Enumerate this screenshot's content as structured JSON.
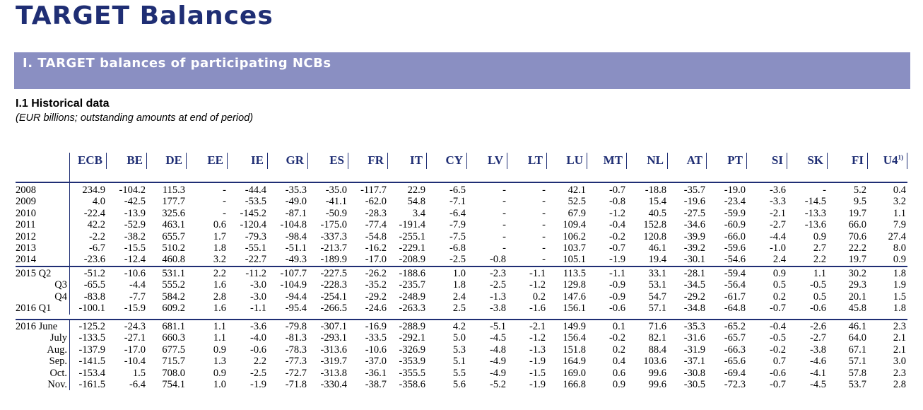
{
  "title": "TARGET Balances",
  "section": "I. TARGET balances of participating NCBs",
  "subsection": {
    "title": "I.1 Historical data",
    "note": "(EUR billions; outstanding amounts at end of period)"
  },
  "columns": [
    "ECB",
    "BE",
    "DE",
    "EE",
    "IE",
    "GR",
    "ES",
    "FR",
    "IT",
    "CY",
    "LV",
    "LT",
    "LU",
    "MT",
    "NL",
    "AT",
    "PT",
    "SI",
    "SK",
    "FI",
    "U4"
  ],
  "last_column_footnote": "1)",
  "groups": [
    {
      "rows": [
        {
          "label": "2008",
          "values": [
            "234.9",
            "-104.2",
            "115.3",
            "-",
            "-44.4",
            "-35.3",
            "-35.0",
            "-117.7",
            "22.9",
            "-6.5",
            "-",
            "-",
            "42.1",
            "-0.7",
            "-18.8",
            "-35.7",
            "-19.0",
            "-3.6",
            "-",
            "5.2",
            "0.4"
          ]
        },
        {
          "label": "2009",
          "values": [
            "4.0",
            "-42.5",
            "177.7",
            "-",
            "-53.5",
            "-49.0",
            "-41.1",
            "-62.0",
            "54.8",
            "-7.1",
            "-",
            "-",
            "52.5",
            "-0.8",
            "15.4",
            "-19.6",
            "-23.4",
            "-3.3",
            "-14.5",
            "9.5",
            "3.2"
          ]
        },
        {
          "label": "2010",
          "values": [
            "-22.4",
            "-13.9",
            "325.6",
            "-",
            "-145.2",
            "-87.1",
            "-50.9",
            "-28.3",
            "3.4",
            "-6.4",
            "-",
            "-",
            "67.9",
            "-1.2",
            "40.5",
            "-27.5",
            "-59.9",
            "-2.1",
            "-13.3",
            "19.7",
            "1.1"
          ]
        },
        {
          "label": "2011",
          "values": [
            "42.2",
            "-52.9",
            "463.1",
            "0.6",
            "-120.4",
            "-104.8",
            "-175.0",
            "-77.4",
            "-191.4",
            "-7.9",
            "-",
            "-",
            "109.4",
            "-0.4",
            "152.8",
            "-34.6",
            "-60.9",
            "-2.7",
            "-13.6",
            "66.0",
            "7.9"
          ]
        },
        {
          "label": "2012",
          "values": [
            "-2.2",
            "-38.2",
            "655.7",
            "1.7",
            "-79.3",
            "-98.4",
            "-337.3",
            "-54.8",
            "-255.1",
            "-7.5",
            "-",
            "-",
            "106.2",
            "-0.2",
            "120.8",
            "-39.9",
            "-66.0",
            "-4.4",
            "0.9",
            "70.6",
            "27.4"
          ]
        },
        {
          "label": "2013",
          "values": [
            "-6.7",
            "-15.5",
            "510.2",
            "1.8",
            "-55.1",
            "-51.1",
            "-213.7",
            "-16.2",
            "-229.1",
            "-6.8",
            "-",
            "-",
            "103.7",
            "-0.7",
            "46.1",
            "-39.2",
            "-59.6",
            "-1.0",
            "2.7",
            "22.2",
            "8.0"
          ]
        },
        {
          "label": "2014",
          "values": [
            "-23.6",
            "-12.4",
            "460.8",
            "3.2",
            "-22.7",
            "-49.3",
            "-189.9",
            "-17.0",
            "-208.9",
            "-2.5",
            "-0.8",
            "-",
            "105.1",
            "-1.9",
            "19.4",
            "-30.1",
            "-54.6",
            "2.4",
            "2.2",
            "19.7",
            "0.9"
          ]
        }
      ]
    },
    {
      "rows": [
        {
          "label": "2015 Q2",
          "values": [
            "-51.2",
            "-10.6",
            "531.1",
            "2.2",
            "-11.2",
            "-107.7",
            "-227.5",
            "-26.2",
            "-188.6",
            "1.0",
            "-2.3",
            "-1.1",
            "113.5",
            "-1.1",
            "33.1",
            "-28.1",
            "-59.4",
            "0.9",
            "1.1",
            "30.2",
            "1.8"
          ]
        },
        {
          "label": "Q3",
          "values": [
            "-65.5",
            "-4.4",
            "555.2",
            "1.6",
            "-3.0",
            "-104.9",
            "-228.3",
            "-35.2",
            "-235.7",
            "1.8",
            "-2.5",
            "-1.2",
            "129.8",
            "-0.9",
            "53.1",
            "-34.5",
            "-56.4",
            "0.5",
            "-0.5",
            "29.3",
            "1.9"
          ]
        },
        {
          "label": "Q4",
          "values": [
            "-83.8",
            "-7.7",
            "584.2",
            "2.8",
            "-3.0",
            "-94.4",
            "-254.1",
            "-29.2",
            "-248.9",
            "2.4",
            "-1.3",
            "0.2",
            "147.6",
            "-0.9",
            "54.7",
            "-29.2",
            "-61.7",
            "0.2",
            "0.5",
            "20.1",
            "1.5"
          ]
        },
        {
          "label": "2016 Q1",
          "values": [
            "-100.1",
            "-15.9",
            "609.2",
            "1.6",
            "-1.1",
            "-95.4",
            "-266.5",
            "-24.6",
            "-263.3",
            "2.5",
            "-3.8",
            "-1.6",
            "156.1",
            "-0.6",
            "57.1",
            "-34.8",
            "-64.8",
            "-0.7",
            "-0.6",
            "45.8",
            "1.8"
          ]
        }
      ]
    },
    {
      "rows": [
        {
          "label": "2016 June",
          "values": [
            "-125.2",
            "-24.3",
            "681.1",
            "1.1",
            "-3.6",
            "-79.8",
            "-307.1",
            "-16.9",
            "-288.9",
            "4.2",
            "-5.1",
            "-2.1",
            "149.9",
            "0.1",
            "71.6",
            "-35.3",
            "-65.2",
            "-0.4",
            "-2.6",
            "46.1",
            "2.3"
          ]
        },
        {
          "label": "July",
          "values": [
            "-133.5",
            "-27.1",
            "660.3",
            "1.1",
            "-4.0",
            "-81.3",
            "-293.1",
            "-33.5",
            "-292.1",
            "5.0",
            "-4.5",
            "-1.2",
            "156.4",
            "-0.2",
            "82.1",
            "-31.6",
            "-65.7",
            "-0.5",
            "-2.7",
            "64.0",
            "2.1"
          ]
        },
        {
          "label": "Aug.",
          "values": [
            "-137.9",
            "-17.0",
            "677.5",
            "0.9",
            "-0.6",
            "-78.3",
            "-313.6",
            "-10.6",
            "-326.9",
            "5.3",
            "-4.8",
            "-1.3",
            "151.8",
            "0.2",
            "88.4",
            "-31.9",
            "-66.3",
            "-0.2",
            "-3.8",
            "67.1",
            "2.1"
          ]
        },
        {
          "label": "Sep.",
          "values": [
            "-141.5",
            "-10.4",
            "715.7",
            "1.3",
            "2.2",
            "-77.3",
            "-319.7",
            "-37.0",
            "-353.9",
            "5.1",
            "-4.9",
            "-1.9",
            "164.9",
            "0.4",
            "103.6",
            "-37.1",
            "-65.6",
            "0.7",
            "-4.6",
            "57.1",
            "3.0"
          ]
        },
        {
          "label": "Oct.",
          "values": [
            "-153.4",
            "1.5",
            "708.0",
            "0.9",
            "-2.5",
            "-72.7",
            "-313.8",
            "-36.1",
            "-355.5",
            "5.5",
            "-4.9",
            "-1.5",
            "169.0",
            "0.6",
            "99.6",
            "-30.8",
            "-69.4",
            "-0.6",
            "-4.1",
            "57.8",
            "2.3"
          ]
        },
        {
          "label": "Nov.",
          "values": [
            "-161.5",
            "-6.4",
            "754.1",
            "1.0",
            "-1.9",
            "-71.8",
            "-330.4",
            "-38.7",
            "-358.6",
            "5.6",
            "-5.2",
            "-1.9",
            "166.8",
            "0.9",
            "99.6",
            "-30.5",
            "-72.3",
            "-0.7",
            "-4.5",
            "53.7",
            "2.8"
          ]
        }
      ]
    }
  ]
}
